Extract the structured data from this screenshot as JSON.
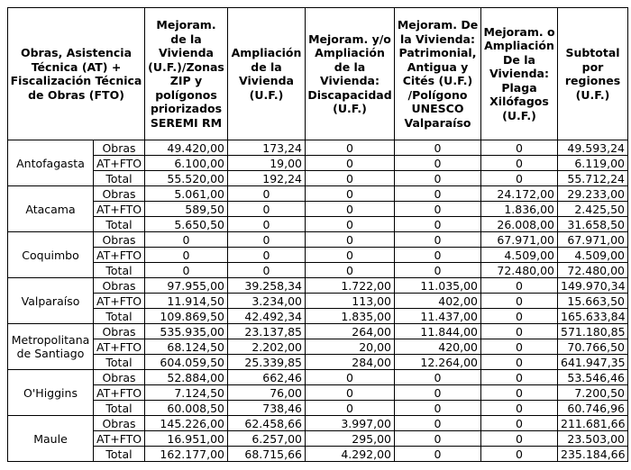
{
  "header": {
    "columns": [
      "Obras, Asistencia Técnica (AT) + Fiscalización Técnica de Obras (FTO)",
      "Mejoram. de la Vivienda (U.F.)/Zonas ZIP y polígonos priorizados SEREMI RM",
      "Ampliación de la Vivienda (U.F.)",
      "Mejoram. y/o Ampliación de la Vivienda: Discapacidad (U.F.)",
      "Mejoram. De la Vivienda: Patrimonial, Antigua y Cités (U.F.) /Polígono UNESCO Valparaíso",
      "Mejoram. o Ampliación De la Vivienda: Plaga Xilófagos (U.F.)",
      "Subtotal por regiones (U.F.)"
    ]
  },
  "regions": [
    {
      "name": "Antofagasta",
      "rows": [
        {
          "label": "Obras",
          "values": [
            "49.420,00",
            "173,24",
            "0",
            "0",
            "0",
            "49.593,24"
          ]
        },
        {
          "label": "AT+FTO",
          "values": [
            "6.100,00",
            "19,00",
            "0",
            "0",
            "0",
            "6.119,00"
          ]
        },
        {
          "label": "Total",
          "values": [
            "55.520,00",
            "192,24",
            "0",
            "0",
            "0",
            "55.712,24"
          ]
        }
      ]
    },
    {
      "name": "Atacama",
      "rows": [
        {
          "label": "Obras",
          "values": [
            "5.061,00",
            "0",
            "0",
            "0",
            "24.172,00",
            "29.233,00"
          ]
        },
        {
          "label": "AT+FTO",
          "values": [
            "589,50",
            "0",
            "0",
            "0",
            "1.836,00",
            "2.425,50"
          ]
        },
        {
          "label": "Total",
          "values": [
            "5.650,50",
            "0",
            "0",
            "0",
            "26.008,00",
            "31.658,50"
          ]
        }
      ]
    },
    {
      "name": "Coquimbo",
      "rows": [
        {
          "label": "Obras",
          "values": [
            "0",
            "0",
            "0",
            "0",
            "67.971,00",
            "67.971,00"
          ]
        },
        {
          "label": "AT+FTO",
          "values": [
            "0",
            "0",
            "0",
            "0",
            "4.509,00",
            "4.509,00"
          ]
        },
        {
          "label": "Total",
          "values": [
            "0",
            "0",
            "0",
            "0",
            "72.480,00",
            "72.480,00"
          ]
        }
      ]
    },
    {
      "name": "Valparaíso",
      "rows": [
        {
          "label": "Obras",
          "values": [
            "97.955,00",
            "39.258,34",
            "1.722,00",
            "11.035,00",
            "0",
            "149.970,34"
          ]
        },
        {
          "label": "AT+FTO",
          "values": [
            "11.914,50",
            "3.234,00",
            "113,00",
            "402,00",
            "0",
            "15.663,50"
          ]
        },
        {
          "label": "Total",
          "values": [
            "109.869,50",
            "42.492,34",
            "1.835,00",
            "11.437,00",
            "0",
            "165.633,84"
          ]
        }
      ]
    },
    {
      "name": "Metropolitana de Santiago",
      "rows": [
        {
          "label": "Obras",
          "values": [
            "535.935,00",
            "23.137,85",
            "264,00",
            "11.844,00",
            "0",
            "571.180,85"
          ]
        },
        {
          "label": "AT+FTO",
          "values": [
            "68.124,50",
            "2.202,00",
            "20,00",
            "420,00",
            "0",
            "70.766,50"
          ]
        },
        {
          "label": "Total",
          "values": [
            "604.059,50",
            "25.339,85",
            "284,00",
            "12.264,00",
            "0",
            "641.947,35"
          ]
        }
      ]
    },
    {
      "name": "O'Higgins",
      "rows": [
        {
          "label": "Obras",
          "values": [
            "52.884,00",
            "662,46",
            "0",
            "0",
            "0",
            "53.546,46"
          ]
        },
        {
          "label": "AT+FTO",
          "values": [
            "7.124,50",
            "76,00",
            "0",
            "0",
            "0",
            "7.200,50"
          ]
        },
        {
          "label": "Total",
          "values": [
            "60.008,50",
            "738,46",
            "0",
            "0",
            "0",
            "60.746,96"
          ]
        }
      ]
    },
    {
      "name": "Maule",
      "rows": [
        {
          "label": "Obras",
          "values": [
            "145.226,00",
            "62.458,66",
            "3.997,00",
            "0",
            "0",
            "211.681,66"
          ]
        },
        {
          "label": "AT+FTO",
          "values": [
            "16.951,00",
            "6.257,00",
            "295,00",
            "0",
            "0",
            "23.503,00"
          ]
        },
        {
          "label": "Total",
          "values": [
            "162.177,00",
            "68.715,66",
            "4.292,00",
            "0",
            "0",
            "235.184,66"
          ]
        }
      ]
    }
  ]
}
